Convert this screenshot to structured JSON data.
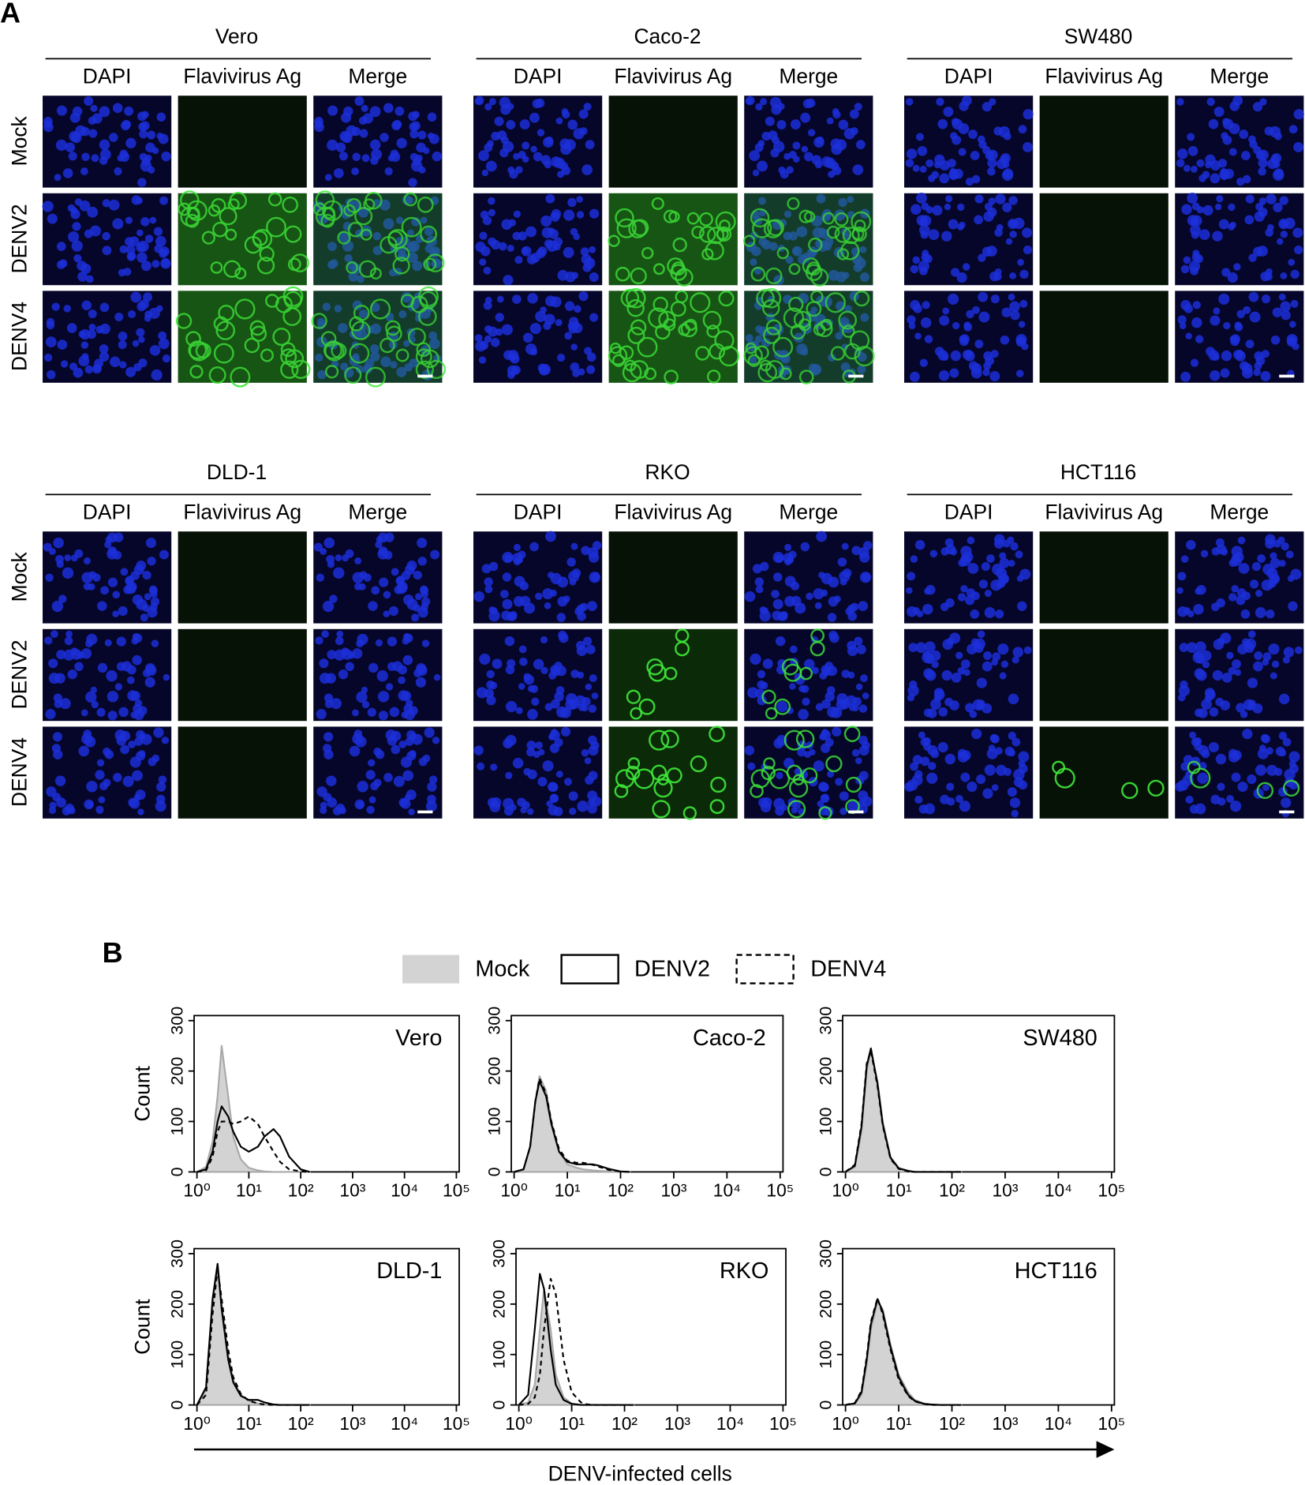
{
  "panel_a": {
    "label": "A",
    "groups": [
      "Vero",
      "Caco-2",
      "SW480",
      "DLD-1",
      "RKO",
      "HCT116"
    ],
    "columns": [
      "DAPI",
      "Flavivirus Ag",
      "Merge"
    ],
    "rows": [
      "Mock",
      "DENV2",
      "DENV4"
    ]
  },
  "panel_b": {
    "label": "B",
    "x_label": "DENV-infected cells"
  },
  "chart_data": [
    {
      "type": "line",
      "title": "Vero",
      "ylabel": "Count",
      "log_x": true,
      "x": [
        1,
        1.5,
        2,
        2.5,
        3,
        4,
        5,
        7,
        10,
        15,
        20,
        30,
        40,
        60,
        100,
        150
      ],
      "series": [
        {
          "name": "Mock",
          "color": "#d3d3d3",
          "style": "filled",
          "values": [
            0,
            10,
            60,
            150,
            250,
            150,
            70,
            25,
            8,
            3,
            1,
            0,
            0,
            0,
            0,
            0
          ]
        },
        {
          "name": "DENV2",
          "color": "#000000",
          "style": "solid",
          "values": [
            0,
            5,
            40,
            100,
            130,
            110,
            80,
            50,
            40,
            50,
            70,
            85,
            70,
            30,
            5,
            0
          ]
        },
        {
          "name": "DENV4",
          "color": "#000000",
          "style": "dashed",
          "values": [
            0,
            3,
            30,
            80,
            100,
            100,
            95,
            100,
            110,
            95,
            70,
            40,
            20,
            5,
            1,
            0
          ]
        }
      ],
      "xlim": [
        1,
        100000
      ],
      "ylim": [
        0,
        310
      ],
      "yticks": [
        0,
        100,
        200,
        300
      ],
      "xticks": [
        {
          "value": 1,
          "label": "10⁰"
        },
        {
          "value": 10,
          "label": "10¹"
        },
        {
          "value": 100,
          "label": "10²"
        },
        {
          "value": 1000,
          "label": "10³"
        },
        {
          "value": 10000,
          "label": "10⁴"
        },
        {
          "value": 100000,
          "label": "10⁵"
        }
      ]
    },
    {
      "type": "line",
      "title": "Caco-2",
      "log_x": true,
      "x": [
        1,
        1.5,
        2,
        2.5,
        3,
        4,
        5,
        7,
        10,
        15,
        20,
        30,
        40,
        60,
        100,
        150
      ],
      "series": [
        {
          "name": "Mock",
          "color": "#d3d3d3",
          "style": "filled",
          "values": [
            0,
            5,
            50,
            140,
            190,
            160,
            100,
            40,
            15,
            8,
            5,
            3,
            2,
            1,
            0,
            0
          ]
        },
        {
          "name": "DENV2",
          "color": "#000000",
          "style": "solid",
          "values": [
            0,
            5,
            50,
            140,
            180,
            150,
            95,
            40,
            20,
            15,
            15,
            15,
            12,
            6,
            1,
            0
          ]
        },
        {
          "name": "DENV4",
          "color": "#000000",
          "style": "dashed",
          "values": [
            0,
            5,
            50,
            140,
            185,
            155,
            100,
            45,
            22,
            18,
            18,
            14,
            10,
            4,
            1,
            0
          ]
        }
      ],
      "xlim": [
        1,
        100000
      ],
      "ylim": [
        0,
        310
      ],
      "yticks": [
        0,
        100,
        200,
        300
      ],
      "xticks": [
        {
          "value": 1,
          "label": "10⁰"
        },
        {
          "value": 10,
          "label": "10¹"
        },
        {
          "value": 100,
          "label": "10²"
        },
        {
          "value": 1000,
          "label": "10³"
        },
        {
          "value": 10000,
          "label": "10⁴"
        },
        {
          "value": 100000,
          "label": "10⁵"
        }
      ]
    },
    {
      "type": "line",
      "title": "SW480",
      "log_x": true,
      "x": [
        1,
        1.5,
        2,
        2.5,
        3,
        4,
        5,
        7,
        10,
        15,
        20,
        30,
        40,
        60,
        100,
        150
      ],
      "series": [
        {
          "name": "Mock",
          "color": "#d3d3d3",
          "style": "filled",
          "values": [
            0,
            10,
            80,
            200,
            240,
            180,
            100,
            30,
            8,
            2,
            0,
            0,
            0,
            0,
            0,
            0
          ]
        },
        {
          "name": "DENV2",
          "color": "#000000",
          "style": "solid",
          "values": [
            0,
            12,
            90,
            210,
            245,
            175,
            95,
            28,
            7,
            2,
            0,
            0,
            0,
            0,
            0,
            0
          ]
        },
        {
          "name": "DENV4",
          "color": "#000000",
          "style": "dashed",
          "values": [
            0,
            14,
            95,
            215,
            240,
            170,
            92,
            26,
            6,
            1,
            0,
            0,
            0,
            0,
            0,
            0
          ]
        }
      ],
      "xlim": [
        1,
        100000
      ],
      "ylim": [
        0,
        310
      ],
      "yticks": [
        0,
        100,
        200,
        300
      ],
      "xticks": [
        {
          "value": 1,
          "label": "10⁰"
        },
        {
          "value": 10,
          "label": "10¹"
        },
        {
          "value": 100,
          "label": "10²"
        },
        {
          "value": 1000,
          "label": "10³"
        },
        {
          "value": 10000,
          "label": "10⁴"
        },
        {
          "value": 100000,
          "label": "10⁵"
        }
      ]
    },
    {
      "type": "line",
      "title": "DLD-1",
      "ylabel": "Count",
      "log_x": true,
      "x": [
        1,
        1.5,
        2,
        2.5,
        3,
        4,
        5,
        7,
        10,
        15,
        20,
        30,
        40,
        60,
        100,
        150
      ],
      "series": [
        {
          "name": "Mock",
          "color": "#d3d3d3",
          "style": "filled",
          "values": [
            0,
            30,
            200,
            275,
            200,
            100,
            50,
            20,
            8,
            3,
            1,
            0,
            0,
            0,
            0,
            0
          ]
        },
        {
          "name": "DENV2",
          "color": "#000000",
          "style": "solid",
          "values": [
            0,
            35,
            210,
            280,
            190,
            90,
            45,
            18,
            10,
            10,
            5,
            1,
            0,
            0,
            0,
            0
          ]
        },
        {
          "name": "DENV4",
          "color": "#000000",
          "style": "dashed",
          "values": [
            0,
            20,
            180,
            270,
            210,
            110,
            55,
            22,
            8,
            3,
            1,
            0,
            0,
            0,
            0,
            0
          ]
        }
      ],
      "xlim": [
        1,
        100000
      ],
      "ylim": [
        0,
        310
      ],
      "yticks": [
        0,
        100,
        200,
        300
      ],
      "xticks": [
        {
          "value": 1,
          "label": "10⁰"
        },
        {
          "value": 10,
          "label": "10¹"
        },
        {
          "value": 100,
          "label": "10²"
        },
        {
          "value": 1000,
          "label": "10³"
        },
        {
          "value": 10000,
          "label": "10⁴"
        },
        {
          "value": 100000,
          "label": "10⁵"
        }
      ]
    },
    {
      "type": "line",
      "title": "RKO",
      "log_x": true,
      "x": [
        1,
        1.5,
        2,
        2.5,
        3,
        4,
        5,
        7,
        10,
        15,
        20,
        30,
        40,
        60,
        100,
        150
      ],
      "series": [
        {
          "name": "Mock",
          "color": "#d3d3d3",
          "style": "filled",
          "values": [
            0,
            5,
            40,
            150,
            230,
            150,
            60,
            15,
            3,
            0,
            0,
            0,
            0,
            0,
            0,
            0
          ]
        },
        {
          "name": "DENV2",
          "color": "#000000",
          "style": "solid",
          "values": [
            0,
            20,
            150,
            260,
            230,
            110,
            40,
            10,
            2,
            0,
            0,
            0,
            0,
            0,
            0,
            0
          ]
        },
        {
          "name": "DENV4",
          "color": "#000000",
          "style": "dashed",
          "values": [
            0,
            2,
            15,
            60,
            150,
            250,
            220,
            90,
            25,
            5,
            1,
            0,
            0,
            0,
            0,
            0
          ]
        }
      ],
      "xlim": [
        1,
        100000
      ],
      "ylim": [
        0,
        310
      ],
      "yticks": [
        0,
        100,
        200,
        300
      ],
      "xticks": [
        {
          "value": 1,
          "label": "10⁰"
        },
        {
          "value": 10,
          "label": "10¹"
        },
        {
          "value": 100,
          "label": "10²"
        },
        {
          "value": 1000,
          "label": "10³"
        },
        {
          "value": 10000,
          "label": "10⁴"
        },
        {
          "value": 100000,
          "label": "10⁵"
        }
      ]
    },
    {
      "type": "line",
      "title": "HCT116",
      "log_x": true,
      "x": [
        1,
        1.5,
        2,
        2.5,
        3,
        4,
        5,
        7,
        10,
        15,
        20,
        30,
        40,
        60,
        100,
        150
      ],
      "series": [
        {
          "name": "Mock",
          "color": "#d3d3d3",
          "style": "filled",
          "values": [
            0,
            2,
            20,
            80,
            150,
            205,
            190,
            120,
            60,
            25,
            10,
            3,
            1,
            0,
            0,
            0
          ]
        },
        {
          "name": "DENV2",
          "color": "#000000",
          "style": "solid",
          "values": [
            0,
            3,
            25,
            90,
            160,
            210,
            185,
            115,
            55,
            20,
            8,
            2,
            1,
            0,
            0,
            0
          ]
        },
        {
          "name": "DENV4",
          "color": "#000000",
          "style": "dashed",
          "values": [
            0,
            4,
            28,
            95,
            165,
            212,
            180,
            110,
            50,
            18,
            7,
            2,
            0,
            0,
            0,
            0
          ]
        }
      ],
      "xlim": [
        1,
        100000
      ],
      "ylim": [
        0,
        310
      ],
      "yticks": [
        0,
        100,
        200,
        300
      ],
      "xticks": [
        {
          "value": 1,
          "label": "10⁰"
        },
        {
          "value": 10,
          "label": "10¹"
        },
        {
          "value": 100,
          "label": "10²"
        },
        {
          "value": 1000,
          "label": "10³"
        },
        {
          "value": 10000,
          "label": "10⁴"
        },
        {
          "value": 100000,
          "label": "10⁵"
        }
      ]
    }
  ]
}
